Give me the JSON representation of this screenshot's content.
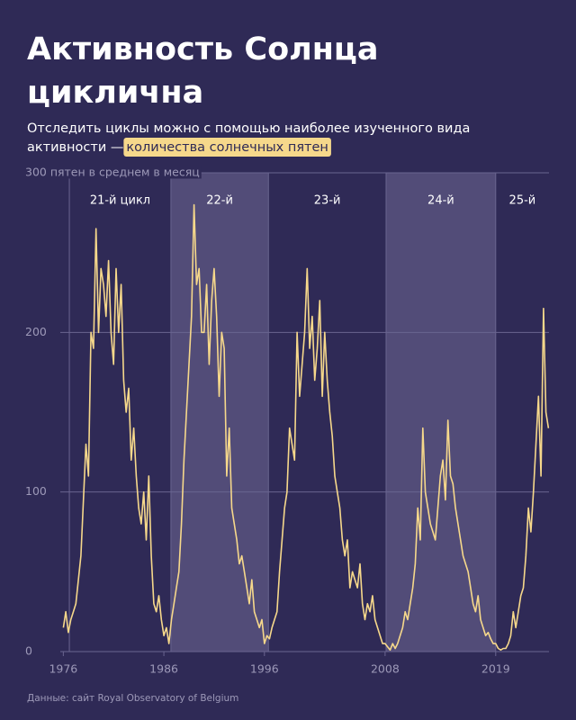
{
  "chart_data": {
    "type": "line",
    "title": [
      "Активность Солнца",
      "циклична"
    ],
    "subtitle": [
      "Отследить циклы можно с помощью наиболее изученного вида",
      "активности — "
    ],
    "subtitle_highlight": "количества солнечных пятен",
    "source": "Данные: сайт Royal Observatory of Belgium",
    "color": "#f6d88b",
    "xlim": [
      1975.7,
      2024.3
    ],
    "ylim": [
      0,
      300
    ],
    "xticks": [
      1976,
      1986,
      1996,
      2008,
      2019
    ],
    "yticks": [
      0,
      100,
      200,
      {
        "value": 300,
        "label": "300 пятен в среднем в месяц"
      }
    ],
    "grid": true,
    "cycles": [
      {
        "label": "21-й цикл",
        "start": 1976.6,
        "end": 1986.7,
        "shaded": false
      },
      {
        "label": "22-й",
        "start": 1986.7,
        "end": 1996.4,
        "shaded": true
      },
      {
        "label": "23-й",
        "start": 1996.4,
        "end": 2008.1,
        "shaded": false
      },
      {
        "label": "24-й",
        "start": 2008.1,
        "end": 2019.0,
        "shaded": true
      },
      {
        "label": "25-й",
        "start": 2019.0,
        "end": 2024.3,
        "shaded": false
      }
    ],
    "x": [
      1976,
      1976.25,
      1976.5,
      1976.75,
      1977,
      1977.25,
      1977.5,
      1977.75,
      1978,
      1978.25,
      1978.5,
      1978.75,
      1979,
      1979.25,
      1979.5,
      1979.75,
      1980,
      1980.25,
      1980.5,
      1980.75,
      1981,
      1981.25,
      1981.5,
      1981.75,
      1982,
      1982.25,
      1982.5,
      1982.75,
      1983,
      1983.25,
      1983.5,
      1983.75,
      1984,
      1984.25,
      1984.5,
      1984.75,
      1985,
      1985.25,
      1985.5,
      1985.75,
      1986,
      1986.25,
      1986.5,
      1986.75,
      1987,
      1987.25,
      1987.5,
      1987.75,
      1988,
      1988.25,
      1988.5,
      1988.75,
      1989,
      1989.25,
      1989.5,
      1989.75,
      1990,
      1990.25,
      1990.5,
      1990.75,
      1991,
      1991.25,
      1991.5,
      1991.75,
      1992,
      1992.25,
      1992.5,
      1992.75,
      1993,
      1993.25,
      1993.5,
      1993.75,
      1994,
      1994.25,
      1994.5,
      1994.75,
      1995,
      1995.25,
      1995.5,
      1995.75,
      1996,
      1996.25,
      1996.5,
      1996.75,
      1997,
      1997.25,
      1997.5,
      1997.75,
      1998,
      1998.25,
      1998.5,
      1998.75,
      1999,
      1999.25,
      1999.5,
      1999.75,
      2000,
      2000.25,
      2000.5,
      2000.75,
      2001,
      2001.25,
      2001.5,
      2001.75,
      2002,
      2002.25,
      2002.5,
      2002.75,
      2003,
      2003.25,
      2003.5,
      2003.75,
      2004,
      2004.25,
      2004.5,
      2004.75,
      2005,
      2005.25,
      2005.5,
      2005.75,
      2006,
      2006.25,
      2006.5,
      2006.75,
      2007,
      2007.25,
      2007.5,
      2007.75,
      2008,
      2008.25,
      2008.5,
      2008.75,
      2009,
      2009.25,
      2009.5,
      2009.75,
      2010,
      2010.25,
      2010.5,
      2010.75,
      2011,
      2011.25,
      2011.5,
      2011.75,
      2012,
      2012.25,
      2012.5,
      2012.75,
      2013,
      2013.25,
      2013.5,
      2013.75,
      2014,
      2014.25,
      2014.5,
      2014.75,
      2015,
      2015.25,
      2015.5,
      2015.75,
      2016,
      2016.25,
      2016.5,
      2016.75,
      2017,
      2017.25,
      2017.5,
      2017.75,
      2018,
      2018.25,
      2018.5,
      2018.75,
      2019,
      2019.25,
      2019.5,
      2019.75,
      2020,
      2020.25,
      2020.5,
      2020.75,
      2021,
      2021.25,
      2021.5,
      2021.75,
      2022,
      2022.25,
      2022.5,
      2022.75,
      2023,
      2023.25,
      2023.5,
      2023.75,
      2024,
      2024.25
    ],
    "values": [
      15,
      25,
      12,
      20,
      25,
      30,
      45,
      60,
      95,
      130,
      110,
      200,
      190,
      265,
      200,
      240,
      230,
      210,
      245,
      200,
      180,
      240,
      200,
      230,
      170,
      150,
      165,
      120,
      140,
      110,
      90,
      80,
      100,
      70,
      110,
      60,
      30,
      25,
      35,
      20,
      10,
      15,
      5,
      20,
      30,
      40,
      50,
      80,
      120,
      150,
      180,
      210,
      280,
      230,
      240,
      200,
      200,
      230,
      180,
      220,
      240,
      210,
      160,
      200,
      190,
      110,
      140,
      90,
      80,
      70,
      55,
      60,
      50,
      40,
      30,
      45,
      25,
      20,
      15,
      20,
      5,
      10,
      8,
      15,
      20,
      25,
      50,
      70,
      90,
      100,
      140,
      130,
      120,
      200,
      160,
      180,
      200,
      240,
      190,
      210,
      170,
      190,
      220,
      160,
      200,
      170,
      150,
      135,
      110,
      100,
      90,
      70,
      60,
      70,
      40,
      50,
      45,
      40,
      55,
      30,
      20,
      30,
      25,
      35,
      20,
      15,
      10,
      5,
      5,
      3,
      1,
      5,
      2,
      5,
      10,
      15,
      25,
      20,
      30,
      40,
      55,
      90,
      70,
      140,
      100,
      90,
      80,
      75,
      70,
      90,
      110,
      120,
      95,
      145,
      110,
      105,
      90,
      80,
      70,
      60,
      55,
      50,
      40,
      30,
      25,
      35,
      20,
      15,
      10,
      12,
      8,
      5,
      5,
      2,
      1,
      2,
      2,
      5,
      10,
      25,
      15,
      25,
      35,
      40,
      60,
      90,
      75,
      100,
      130,
      160,
      110,
      215,
      150,
      140
    ]
  }
}
